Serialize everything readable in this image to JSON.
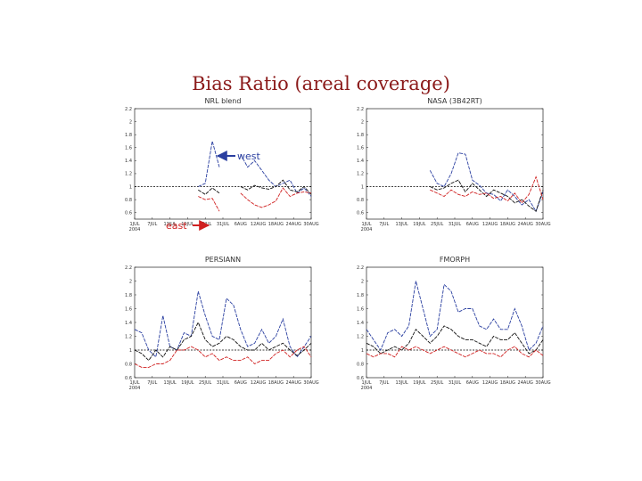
{
  "title": "Bias Ratio (areal coverage)",
  "annotations": {
    "west": "west",
    "east": "east"
  },
  "colors": {
    "west": "#2a3fa0",
    "east": "#d02020",
    "total": "#111111",
    "reference": "#000000"
  },
  "chart_data": [
    {
      "type": "line",
      "title": "NRL blend",
      "ylim": [
        0.5,
        2.2
      ],
      "yticks": [
        0.6,
        0.8,
        1.0,
        1.2,
        1.4,
        1.6,
        1.8,
        2.0,
        2.2
      ],
      "ytick_labels": [
        "0.6",
        "0.8",
        "1",
        "1.2",
        "1.4",
        "1.6",
        "1.8",
        "2",
        "2.2"
      ],
      "xtick_labels": [
        "1JUL",
        "7JUL",
        "13JUL",
        "19JUL",
        "25JUL",
        "31JUL",
        "6AUG",
        "12AUG",
        "18AUG",
        "24AUG",
        "30AUG"
      ],
      "xtick_sub": "2004",
      "reference": 1,
      "series": [
        {
          "values": [
            null,
            null,
            null,
            null,
            null,
            null,
            null,
            null,
            null,
            1.0,
            1.05,
            1.7,
            1.3,
            null,
            null,
            1.5,
            1.3,
            1.4,
            1.25,
            1.1,
            1.0,
            1.05,
            1.1,
            0.9,
            0.98,
            0.85
          ]
        },
        {
          "values": [
            null,
            null,
            null,
            null,
            null,
            null,
            null,
            null,
            null,
            0.95,
            0.88,
            0.98,
            0.9,
            null,
            null,
            1.0,
            0.95,
            1.02,
            0.98,
            0.96,
            1.0,
            1.1,
            0.95,
            0.92,
            1.0,
            0.88
          ]
        },
        {
          "values": [
            null,
            null,
            null,
            null,
            null,
            null,
            null,
            null,
            null,
            0.85,
            0.8,
            0.82,
            0.62,
            null,
            null,
            0.9,
            0.8,
            0.72,
            0.68,
            0.72,
            0.78,
            0.98,
            0.85,
            0.9,
            0.92,
            0.9
          ]
        }
      ]
    },
    {
      "type": "line",
      "title": "NASA (3B42RT)",
      "ylim": [
        0.5,
        2.2
      ],
      "yticks": [
        0.6,
        0.8,
        1.0,
        1.2,
        1.4,
        1.6,
        1.8,
        2.0,
        2.2
      ],
      "ytick_labels": [
        "0.6",
        "0.8",
        "1",
        "1.2",
        "1.4",
        "1.6",
        "1.8",
        "2",
        "2.2"
      ],
      "xtick_labels": [
        "1JUL",
        "7JUL",
        "13JUL",
        "19JUL",
        "25JUL",
        "31JUL",
        "6AUG",
        "12AUG",
        "18AUG",
        "24AUG",
        "30AUG"
      ],
      "xtick_sub": "2004",
      "reference": 1,
      "series": [
        {
          "values": [
            null,
            null,
            null,
            null,
            null,
            null,
            null,
            null,
            null,
            1.25,
            1.05,
            1.0,
            1.2,
            1.52,
            1.5,
            1.1,
            1.02,
            0.9,
            0.88,
            0.78,
            0.95,
            0.85,
            0.72,
            0.8,
            0.62,
            0.92
          ]
        },
        {
          "values": [
            null,
            null,
            null,
            null,
            null,
            null,
            null,
            null,
            null,
            1.0,
            0.95,
            0.98,
            1.05,
            1.1,
            0.92,
            1.05,
            0.95,
            0.85,
            0.95,
            0.9,
            0.85,
            0.75,
            0.8,
            0.7,
            0.62,
            0.95
          ]
        },
        {
          "values": [
            null,
            null,
            null,
            null,
            null,
            null,
            null,
            null,
            null,
            0.95,
            0.9,
            0.85,
            0.95,
            0.88,
            0.85,
            0.92,
            0.88,
            0.9,
            0.82,
            0.85,
            0.78,
            0.9,
            0.75,
            0.88,
            1.15,
            0.8
          ]
        }
      ]
    },
    {
      "type": "line",
      "title": "PERSIANN",
      "ylim": [
        0.6,
        2.2
      ],
      "yticks": [
        0.6,
        0.8,
        1.0,
        1.2,
        1.4,
        1.6,
        1.8,
        2.0,
        2.2
      ],
      "ytick_labels": [
        "0.6",
        "0.8",
        "1",
        "1.2",
        "1.4",
        "1.6",
        "1.8",
        "2",
        "2.2"
      ],
      "xtick_labels": [
        "1JUL",
        "7JUL",
        "13JUL",
        "19JUL",
        "25JUL",
        "31JUL",
        "6AUG",
        "12AUG",
        "18AUG",
        "24AUG",
        "30AUG"
      ],
      "xtick_sub": "2004",
      "reference": 1,
      "series": [
        {
          "values": [
            1.3,
            1.25,
            1.0,
            0.9,
            1.5,
            1.05,
            1.0,
            1.25,
            1.2,
            1.85,
            1.5,
            1.2,
            1.15,
            1.75,
            1.65,
            1.3,
            1.05,
            1.1,
            1.3,
            1.1,
            1.2,
            1.45,
            1.05,
            0.9,
            1.05,
            1.2
          ]
        },
        {
          "values": [
            1.0,
            0.95,
            0.85,
            1.0,
            0.9,
            1.05,
            1.0,
            1.15,
            1.2,
            1.4,
            1.15,
            1.05,
            1.1,
            1.2,
            1.15,
            1.05,
            1.0,
            1.0,
            1.1,
            1.0,
            1.05,
            1.1,
            1.0,
            0.92,
            1.0,
            1.1
          ]
        },
        {
          "values": [
            0.8,
            0.75,
            0.75,
            0.8,
            0.8,
            0.85,
            1.0,
            1.0,
            1.05,
            1.0,
            0.9,
            0.95,
            0.85,
            0.9,
            0.85,
            0.85,
            0.9,
            0.8,
            0.85,
            0.85,
            0.95,
            1.0,
            0.9,
            1.0,
            1.05,
            0.9
          ]
        }
      ]
    },
    {
      "type": "line",
      "title": "FMORPH",
      "ylim": [
        0.6,
        2.2
      ],
      "yticks": [
        0.6,
        0.8,
        1.0,
        1.2,
        1.4,
        1.6,
        1.8,
        2.0,
        2.2
      ],
      "ytick_labels": [
        "0.6",
        "0.8",
        "1",
        "1.2",
        "1.4",
        "1.6",
        "1.8",
        "2",
        "2.2"
      ],
      "xtick_labels": [
        "1JUL",
        "7JUL",
        "13JUL",
        "19JUL",
        "25JUL",
        "31JUL",
        "6AUG",
        "12AUG",
        "18AUG",
        "24AUG",
        "30AUG"
      ],
      "xtick_sub": "2004",
      "reference": 1,
      "series": [
        {
          "values": [
            1.3,
            1.15,
            1.0,
            1.25,
            1.3,
            1.2,
            1.35,
            2.0,
            1.6,
            1.2,
            1.3,
            1.95,
            1.85,
            1.55,
            1.6,
            1.6,
            1.35,
            1.3,
            1.45,
            1.3,
            1.3,
            1.6,
            1.35,
            1.0,
            1.1,
            1.35
          ]
        },
        {
          "values": [
            1.1,
            1.05,
            0.95,
            1.0,
            1.05,
            1.0,
            1.1,
            1.3,
            1.2,
            1.1,
            1.2,
            1.35,
            1.3,
            1.2,
            1.15,
            1.15,
            1.1,
            1.05,
            1.2,
            1.15,
            1.15,
            1.25,
            1.1,
            0.95,
            1.0,
            1.15
          ]
        },
        {
          "values": [
            0.95,
            0.9,
            0.95,
            0.95,
            0.9,
            1.05,
            1.0,
            1.05,
            1.0,
            0.95,
            1.0,
            1.05,
            1.0,
            0.95,
            0.9,
            0.95,
            1.0,
            0.95,
            0.95,
            0.9,
            1.0,
            1.05,
            0.95,
            0.9,
            1.0,
            0.92
          ]
        }
      ]
    }
  ]
}
